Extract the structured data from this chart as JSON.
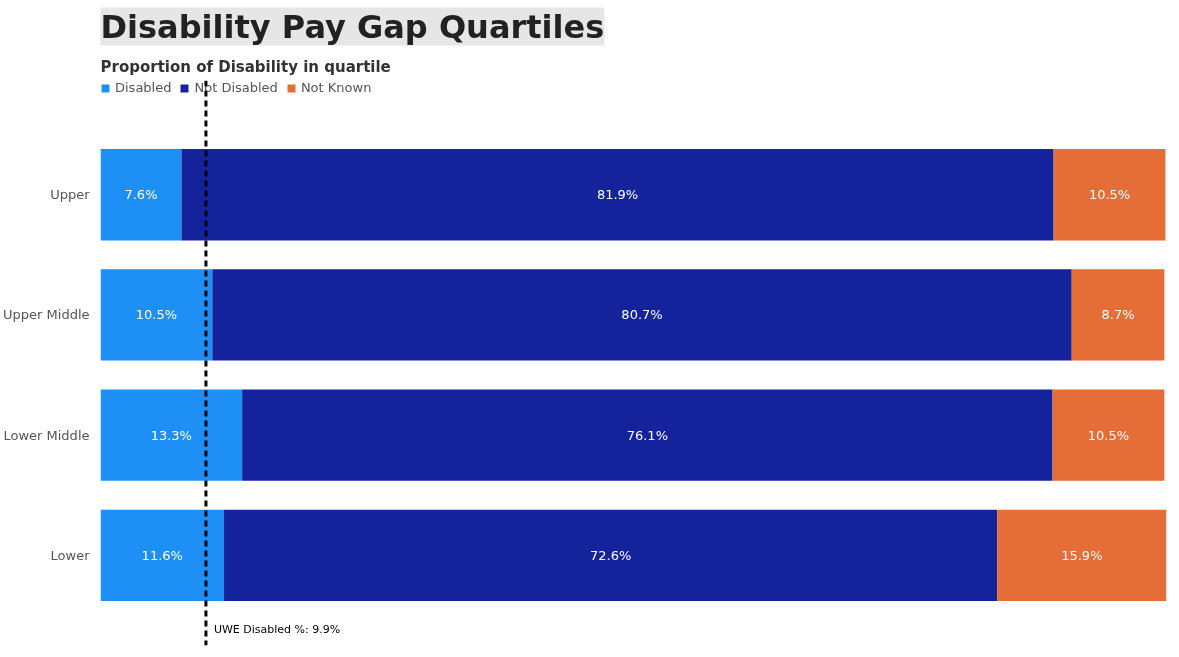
{
  "chart_data": {
    "type": "bar",
    "orientation": "horizontal",
    "stacked": true,
    "title": "Disability Pay Gap Quartiles",
    "subtitle": "Proportion of Disability in quartile",
    "categories": [
      "Upper",
      "Upper Middle",
      "Lower Middle",
      "Lower"
    ],
    "series": [
      {
        "name": "Disabled",
        "color": "#1e90f5",
        "values": [
          7.6,
          10.5,
          13.3,
          11.6
        ],
        "value_labels": [
          "7.6%",
          "10.5%",
          "13.3%",
          "11.6%"
        ]
      },
      {
        "name": "Not Disabled",
        "color": "#14239c",
        "values": [
          81.9,
          80.7,
          76.1,
          72.6
        ],
        "value_labels": [
          "81.9%",
          "80.7%",
          "76.1%",
          "72.6%"
        ]
      },
      {
        "name": "Not Known",
        "color": "#e56d37",
        "values": [
          10.5,
          8.7,
          10.5,
          15.9
        ],
        "value_labels": [
          "10.5%",
          "8.7%",
          "10.5%",
          "15.9%"
        ]
      }
    ],
    "legend": "top left",
    "grid": false,
    "tick_labels": "y",
    "ref_lines": [
      {
        "axis": "x",
        "value": 9.9,
        "label": "UWE Disabled %: 9.9%",
        "color": "#000000",
        "line_style": "dashed"
      }
    ]
  }
}
